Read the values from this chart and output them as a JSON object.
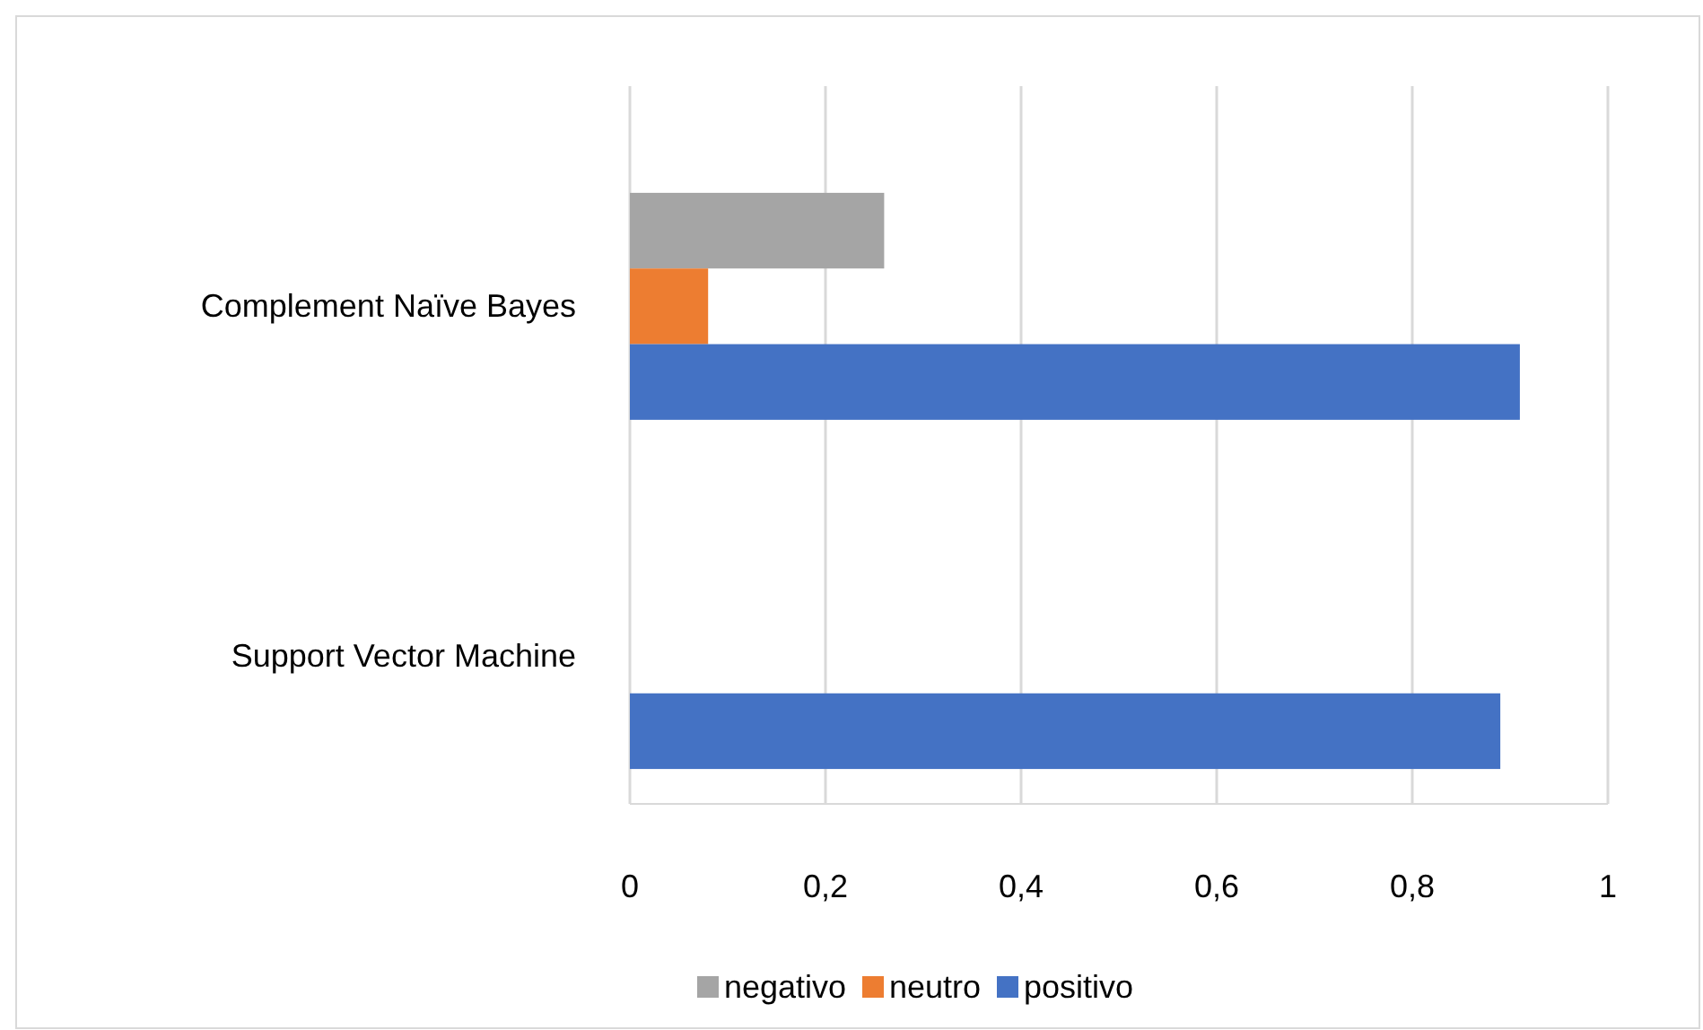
{
  "chart_data": {
    "type": "bar",
    "orientation": "horizontal",
    "categories": [
      "Complement Naïve Bayes",
      "Support Vector Machine"
    ],
    "series": [
      {
        "name": "negativo",
        "color": "#a5a5a5",
        "values": [
          0.26,
          0
        ]
      },
      {
        "name": "neutro",
        "color": "#ed7d31",
        "values": [
          0.08,
          0
        ]
      },
      {
        "name": "positivo",
        "color": "#4472c4",
        "values": [
          0.91,
          0.89
        ]
      }
    ],
    "xlim": [
      0,
      1
    ],
    "xticks": [
      0,
      {
        "value": 0.2,
        "label": "0,2"
      },
      {
        "value": 0.4,
        "label": "0,4"
      },
      {
        "value": 0.6,
        "label": "0,6"
      },
      {
        "value": 0.8,
        "label": "0,8"
      },
      1
    ],
    "grid": "x",
    "legend": "bottom"
  }
}
